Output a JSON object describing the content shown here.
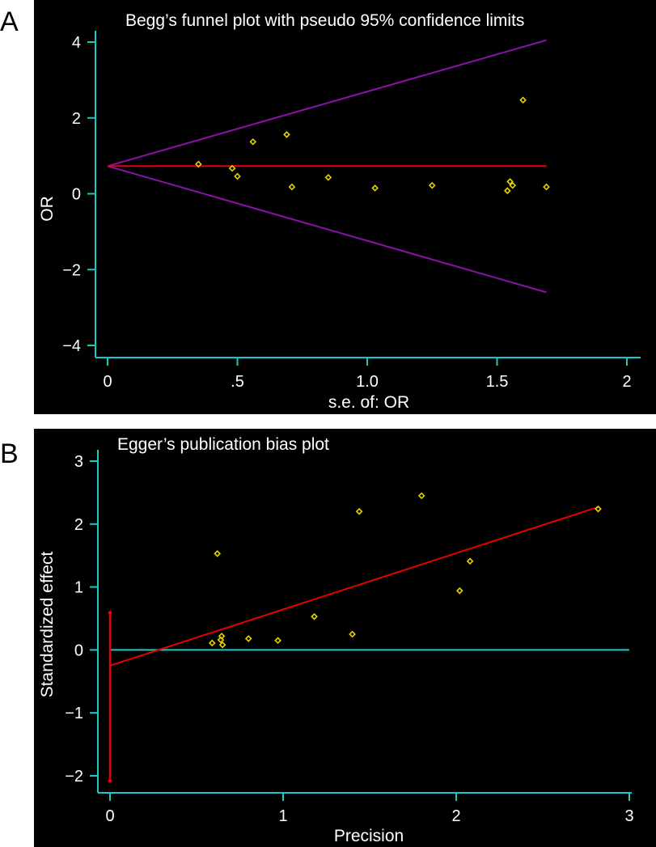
{
  "panels": {
    "a": {
      "letter": "A"
    },
    "b": {
      "letter": "B"
    }
  },
  "colors": {
    "background": "#000000",
    "axis": "#19c9c9",
    "points": "#e6d200",
    "regression": "#e60000",
    "limits": "#8b12a8",
    "text": "#ffffff"
  },
  "chart_data": [
    {
      "type": "scatter",
      "title": "Begg’s funnel plot with pseudo 95% confidence limits",
      "xlabel": "s.e. of: OR",
      "ylabel": "OR",
      "xlim": [
        0,
        2
      ],
      "ylim": [
        -4,
        4
      ],
      "x_ticks": [
        0,
        0.5,
        1,
        1.5,
        2
      ],
      "x_tick_labels": [
        "0",
        ".5",
        "1.0",
        "1.5",
        "2"
      ],
      "y_ticks": [
        -4,
        -2,
        0,
        2,
        4
      ],
      "y_tick_labels": [
        "−4",
        "−2",
        "0",
        "2",
        "4"
      ],
      "grid": false,
      "points": [
        {
          "x": 0.35,
          "y": 0.78
        },
        {
          "x": 0.48,
          "y": 0.67
        },
        {
          "x": 0.5,
          "y": 0.46
        },
        {
          "x": 0.56,
          "y": 1.37
        },
        {
          "x": 0.69,
          "y": 1.56
        },
        {
          "x": 0.71,
          "y": 0.18
        },
        {
          "x": 0.85,
          "y": 0.43
        },
        {
          "x": 1.03,
          "y": 0.15
        },
        {
          "x": 1.25,
          "y": 0.22
        },
        {
          "x": 1.54,
          "y": 0.08
        },
        {
          "x": 1.55,
          "y": 0.32
        },
        {
          "x": 1.56,
          "y": 0.22
        },
        {
          "x": 1.6,
          "y": 2.47
        },
        {
          "x": 1.69,
          "y": 0.18
        }
      ],
      "pooled_line": {
        "x": [
          0,
          1.69
        ],
        "y": [
          0.73,
          0.73
        ]
      },
      "upper_limit": {
        "x": [
          0,
          1.69
        ],
        "y": [
          0.73,
          4.05
        ]
      },
      "lower_limit": {
        "x": [
          0,
          1.69
        ],
        "y": [
          0.73,
          -2.6
        ]
      }
    },
    {
      "type": "scatter",
      "title": "Egger’s publication bias plot",
      "xlabel": "Precision",
      "ylabel": "Standardized effect",
      "xlim": [
        0,
        3
      ],
      "ylim": [
        -2,
        3
      ],
      "x_ticks": [
        0,
        1,
        2,
        3
      ],
      "x_tick_labels": [
        "0",
        "1",
        "2",
        "3"
      ],
      "y_ticks": [
        -2,
        -1,
        0,
        1,
        2,
        3
      ],
      "y_tick_labels": [
        "−2",
        "−1",
        "0",
        "1",
        "2",
        "3"
      ],
      "grid": false,
      "points": [
        {
          "x": 0.59,
          "y": 0.11
        },
        {
          "x": 0.62,
          "y": 1.53
        },
        {
          "x": 0.64,
          "y": 0.16
        },
        {
          "x": 0.645,
          "y": 0.22
        },
        {
          "x": 0.65,
          "y": 0.08
        },
        {
          "x": 0.8,
          "y": 0.18
        },
        {
          "x": 0.97,
          "y": 0.15
        },
        {
          "x": 1.18,
          "y": 0.53
        },
        {
          "x": 1.4,
          "y": 0.25
        },
        {
          "x": 1.44,
          "y": 2.2
        },
        {
          "x": 1.8,
          "y": 2.45
        },
        {
          "x": 2.02,
          "y": 0.94
        },
        {
          "x": 2.08,
          "y": 1.41
        },
        {
          "x": 2.82,
          "y": 2.24
        }
      ],
      "regression_line": {
        "x": [
          0,
          2.82
        ],
        "y": [
          -0.25,
          2.27
        ]
      },
      "zero_line": {
        "x": [
          0,
          3
        ],
        "y": [
          0,
          0
        ]
      },
      "intercept_ci": {
        "x": 0,
        "y": [
          -2.08,
          0.59
        ]
      }
    }
  ]
}
